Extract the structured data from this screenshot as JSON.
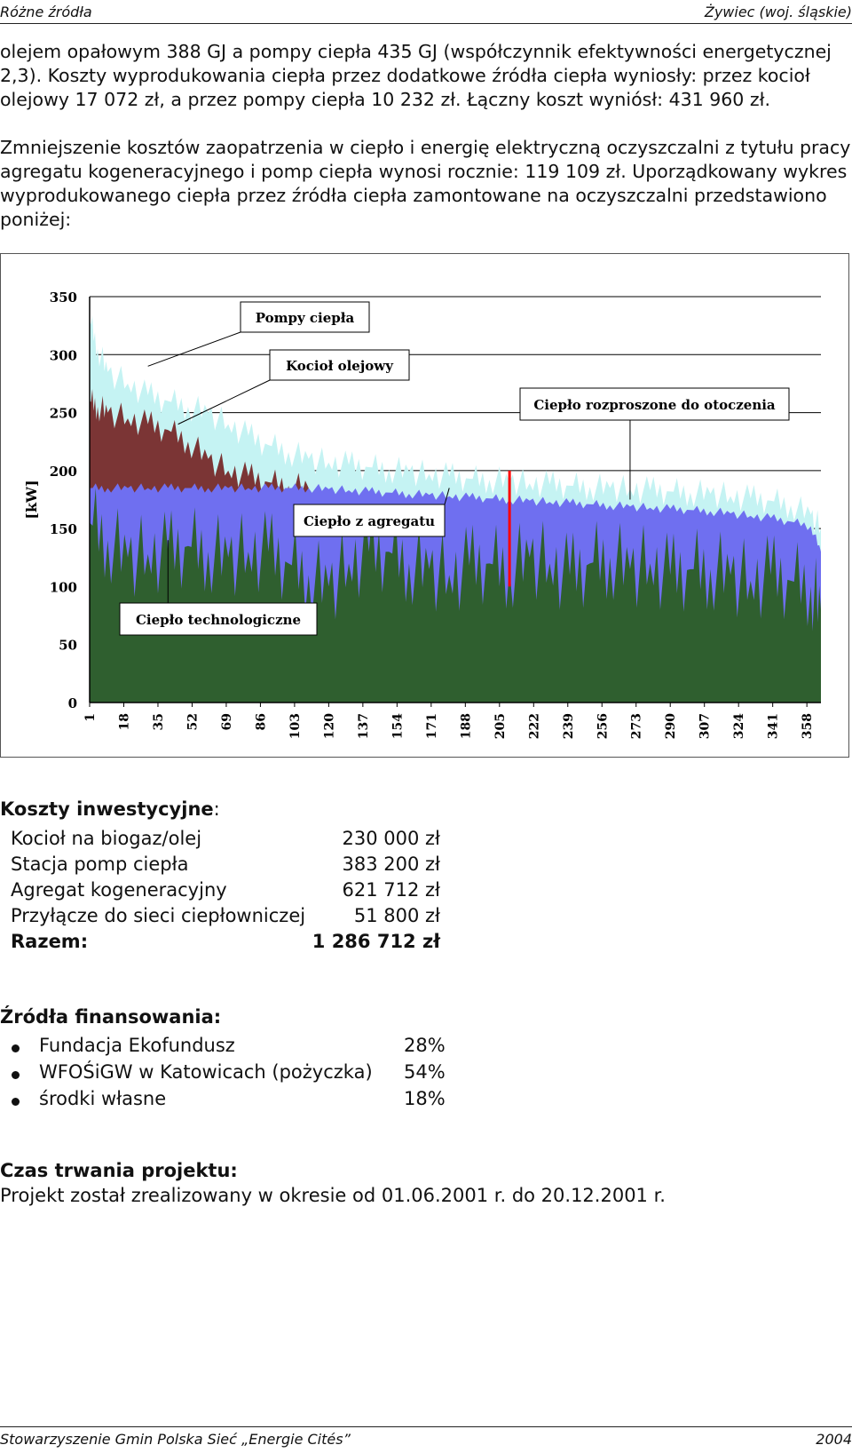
{
  "header": {
    "left": "Różne źródła",
    "right": "Żywiec (woj. śląskie)"
  },
  "paragraphs": {
    "p1": "olejem opałowym 388 GJ a pompy ciepła 435 GJ (współczynnik efektywności energetycznej 2,3). Koszty wyprodukowania ciepła przez dodatkowe źródła ciepła wyniosły: przez kocioł olejowy 17 072 zł, a przez pompy ciepła 10 232 zł. Łączny koszt wyniósł: 431 960 zł.",
    "p2": "Zmniejszenie kosztów zaopatrzenia w ciepło i energię elektryczną oczyszczalni z tytułu pracy agregatu kogeneracyjnego i pomp ciepła wynosi rocznie: 119 109 zł. Uporządkowany wykres wyprodukowanego ciepła przez źródła ciepła zamontowane na oczyszczalni przedstawiono poniżej:"
  },
  "chart_data": {
    "type": "area",
    "ylabel": "[kW]",
    "ylim": [
      0,
      350
    ],
    "yticks": [
      "0",
      "50",
      "100",
      "150",
      "200",
      "250",
      "300",
      "350"
    ],
    "xticks": [
      "1",
      "18",
      "35",
      "52",
      "69",
      "86",
      "103",
      "120",
      "137",
      "154",
      "171",
      "188",
      "205",
      "222",
      "239",
      "256",
      "273",
      "290",
      "307",
      "324",
      "341",
      "358"
    ],
    "xlim": [
      1,
      365
    ],
    "grid": true,
    "annotations": [
      "Pompy ciepła",
      "Kocioł olejowy",
      "Ciepło rozproszone do otoczenia",
      "Ciepło z agregatu",
      "Ciepło technologiczne"
    ],
    "series": [
      {
        "name": "Ciepło technologiczne",
        "color": "#2f5f2f",
        "x": [
          1,
          10,
          20,
          30,
          40,
          50,
          60,
          70,
          80,
          90,
          100,
          110,
          120,
          130,
          140,
          150,
          160,
          170,
          180,
          190,
          200,
          210,
          220,
          230,
          240,
          250,
          260,
          270,
          280,
          290,
          300,
          310,
          320,
          330,
          340,
          350,
          360,
          365
        ],
        "values": [
          155,
          140,
          125,
          128,
          130,
          135,
          130,
          125,
          130,
          130,
          120,
          110,
          100,
          120,
          130,
          130,
          120,
          115,
          110,
          118,
          120,
          115,
          125,
          120,
          110,
          120,
          125,
          115,
          120,
          110,
          115,
          115,
          110,
          105,
          110,
          105,
          100,
          80
        ]
      },
      {
        "name": "Ciepło z agregatu",
        "color": "#6f6ff0",
        "x": [
          1,
          10,
          20,
          30,
          40,
          50,
          60,
          70,
          80,
          90,
          100,
          110,
          120,
          130,
          140,
          150,
          160,
          170,
          180,
          190,
          200,
          210,
          220,
          230,
          240,
          250,
          260,
          270,
          280,
          290,
          300,
          310,
          320,
          330,
          340,
          350,
          360,
          365
        ],
        "values": [
          185,
          185,
          185,
          185,
          185,
          185,
          185,
          185,
          185,
          185,
          185,
          185,
          184,
          183,
          182,
          181,
          180,
          179,
          178,
          177,
          176,
          175,
          174,
          173,
          172,
          171,
          170,
          169,
          168,
          167,
          166,
          165,
          163,
          161,
          159,
          156,
          152,
          130
        ]
      },
      {
        "name": "Kocioł olejowy",
        "color": "#7b3535",
        "x": [
          1,
          5,
          10,
          20,
          30,
          40,
          50,
          60,
          70,
          80,
          90,
          100,
          110
        ],
        "values": [
          260,
          255,
          250,
          245,
          240,
          235,
          225,
          210,
          200,
          195,
          190,
          187,
          185
        ]
      },
      {
        "name": "Pompy ciepła",
        "color": "#c5f3f3",
        "x": [
          1,
          5,
          10,
          20,
          30,
          40,
          50,
          60,
          70,
          80,
          90,
          100,
          110,
          120,
          130,
          140,
          150,
          160,
          170,
          180,
          190,
          200,
          210,
          220,
          230,
          240,
          250,
          260,
          270,
          280,
          290,
          300,
          310,
          320,
          330,
          340,
          350,
          360,
          365
        ],
        "values": [
          330,
          305,
          285,
          275,
          265,
          260,
          255,
          250,
          240,
          230,
          222,
          216,
          210,
          207,
          205,
          203,
          201,
          199,
          197,
          195,
          193,
          192,
          191,
          189,
          188,
          187,
          186,
          185,
          184,
          183,
          182,
          181,
          180,
          178,
          176,
          174,
          170,
          162,
          150
        ]
      }
    ]
  },
  "costs": {
    "title": "Koszty inwestycyjne",
    "colon": ":",
    "items": [
      {
        "name": "Kocioł na biogaz/olej",
        "value": "230 000 zł"
      },
      {
        "name": "Stacja pomp ciepła",
        "value": "383 200 zł"
      },
      {
        "name": "Agregat kogeneracyjny",
        "value": "621 712 zł"
      },
      {
        "name": "Przyłącze do sieci ciepłowniczej",
        "value": "51 800 zł"
      }
    ],
    "total": {
      "name": "Razem:",
      "value": "1 286 712 zł"
    }
  },
  "funding": {
    "title": "Źródła finansowania:",
    "items": [
      {
        "name": "Fundacja Ekofundusz",
        "pct": "28%"
      },
      {
        "name": "WFOŚiGW w Katowicach (pożyczka)",
        "pct": "54%"
      },
      {
        "name": "środki własne",
        "pct": "18%"
      }
    ]
  },
  "duration": {
    "title": "Czas trwania projektu:",
    "text": "Projekt został zrealizowany w okresie od 01.06.2001 r. do 20.12.2001 r."
  },
  "footer": {
    "left": "Stowarzyszenie Gmin Polska Sieć „Energie Cités”",
    "right": "2004"
  }
}
